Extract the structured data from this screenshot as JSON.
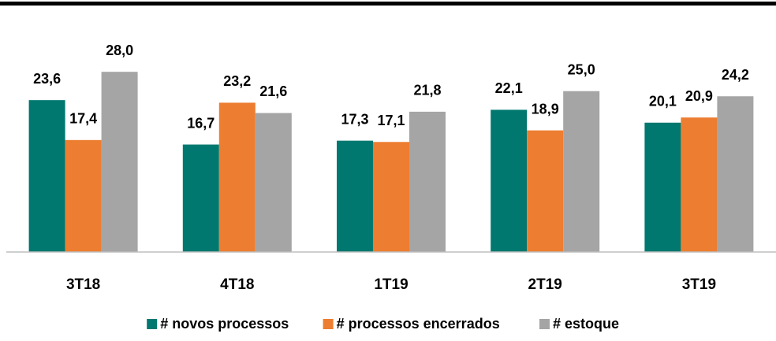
{
  "chart_data": {
    "type": "bar",
    "categories": [
      "3T18",
      "4T18",
      "1T19",
      "2T19",
      "3T19"
    ],
    "series": [
      {
        "name": "# novos processos",
        "color": "#00786f",
        "values": [
          23.6,
          16.7,
          17.3,
          22.1,
          20.1
        ],
        "value_labels": [
          "23,6",
          "16,7",
          "17,3",
          "22,1",
          "20,1"
        ]
      },
      {
        "name": "# processos encerrados",
        "color": "#ed7d31",
        "values": [
          17.4,
          23.2,
          17.1,
          18.9,
          20.9
        ],
        "value_labels": [
          "17,4",
          "23,2",
          "17,1",
          "18,9",
          "20,9"
        ]
      },
      {
        "name": "# estoque",
        "color": "#a5a5a5",
        "values": [
          28.0,
          21.6,
          21.8,
          25.0,
          24.2
        ],
        "value_labels": [
          "28,0",
          "21,6",
          "21,8",
          "25,0",
          "24,2"
        ]
      }
    ],
    "ylim": [
      0,
      35
    ],
    "legend": "bottom"
  }
}
